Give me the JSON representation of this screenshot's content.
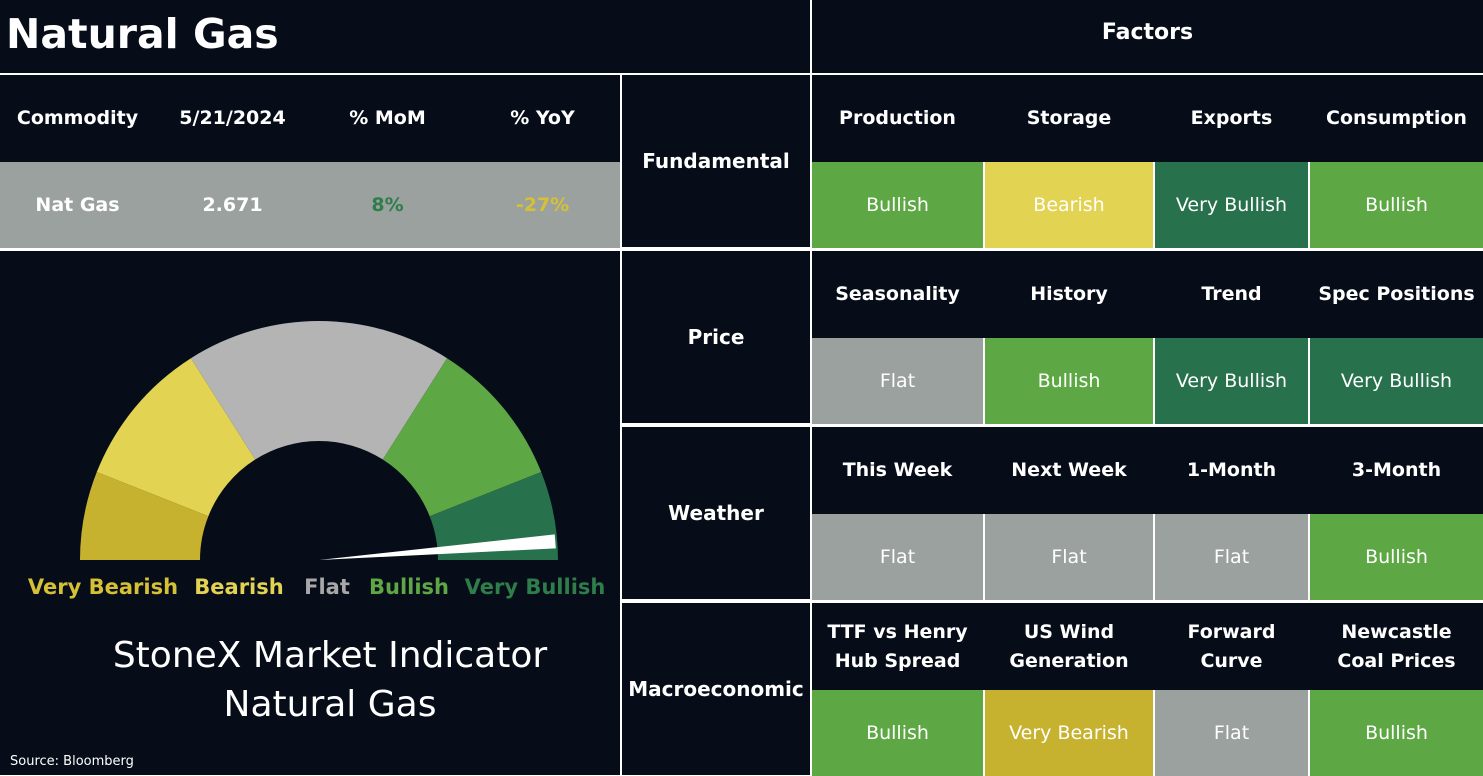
{
  "header": {
    "title": "Natural Gas",
    "factors_title": "Factors"
  },
  "commodity_table": {
    "headers": [
      "Commodity",
      "5/21/2024",
      "% MoM",
      "% YoY"
    ],
    "row": {
      "commodity": "Nat Gas",
      "price": "2.671",
      "mom": "8%",
      "yoy": "-27%"
    },
    "colors": {
      "mom": "#2e7d4a",
      "yoy": "#d6c034"
    }
  },
  "factor_groups": [
    {
      "name": "Fundamental",
      "factors": [
        {
          "label": "Production",
          "value": "Bullish"
        },
        {
          "label": "Storage",
          "value": "Bearish"
        },
        {
          "label": "Exports",
          "value": "Very Bullish"
        },
        {
          "label": "Consumption",
          "value": "Bullish"
        }
      ]
    },
    {
      "name": "Price",
      "factors": [
        {
          "label": "Seasonality",
          "value": "Flat"
        },
        {
          "label": "History",
          "value": "Bullish"
        },
        {
          "label": "Trend",
          "value": "Very Bullish"
        },
        {
          "label": "Spec Positions",
          "value": "Very Bullish"
        }
      ]
    },
    {
      "name": "Weather",
      "factors": [
        {
          "label": "This Week",
          "value": "Flat"
        },
        {
          "label": "Next Week",
          "value": "Flat"
        },
        {
          "label": "1-Month",
          "value": "Flat"
        },
        {
          "label": "3-Month",
          "value": "Bullish"
        }
      ]
    },
    {
      "name": "Macroeconomic",
      "factors": [
        {
          "label": "TTF vs Henry Hub Spread",
          "value": "Bullish"
        },
        {
          "label": "US Wind Generation",
          "value": "Very Bearish"
        },
        {
          "label": "Forward Curve",
          "value": "Flat"
        },
        {
          "label": "Newcastle Coal Prices",
          "value": "Bullish"
        }
      ]
    }
  ],
  "sentiment_colors": {
    "Very Bearish": "#c7b22f",
    "Bearish": "#e2d352",
    "Flat": "#9aa19f",
    "Bullish": "#5da845",
    "Very Bullish": "#27714c"
  },
  "sentiment_text_colors": {
    "Very Bearish": "#ffffff",
    "Bearish": "#ffffff",
    "Flat": "#ffffff",
    "Bullish": "#ffffff",
    "Very Bullish": "#ffffff"
  },
  "chart_data": {
    "type": "gauge",
    "categories": [
      "Very Bearish",
      "Bearish",
      "Flat",
      "Bullish",
      "Very Bullish"
    ],
    "segment_spans": [
      0.12,
      0.2,
      0.36,
      0.2,
      0.12
    ],
    "needle_value": 0.975,
    "needle_color": "#ffffff",
    "gauge_colors": [
      "#c7b22f",
      "#e2d352",
      "#b4b4b4",
      "#5da845",
      "#27714c"
    ],
    "label_colors": [
      "#d6c034",
      "#e2d352",
      "#a8a8a8",
      "#5da845",
      "#2e7d4a"
    ],
    "title_lines": [
      "StoneX Market Indicator",
      "Natural Gas"
    ]
  },
  "source": "Source: Bloomberg"
}
